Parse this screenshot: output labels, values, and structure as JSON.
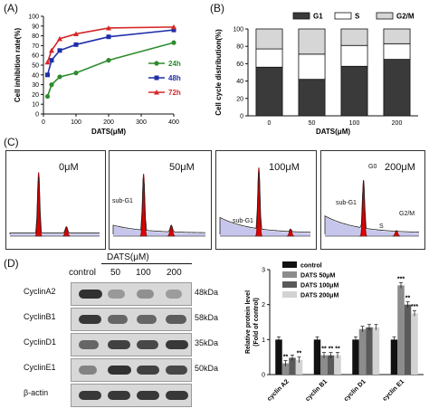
{
  "panels": {
    "a": "(A)",
    "b": "(B)",
    "c": "(C)",
    "d": "(D)"
  },
  "chart_data": [
    {
      "panel": "A",
      "type": "line",
      "xlabel": "DATS(μM)",
      "ylabel": "Cell inhibition rate(%)",
      "xlim": [
        0,
        400
      ],
      "ylim": [
        0,
        100
      ],
      "xticks": [
        "0",
        "100",
        "200",
        "300",
        "400"
      ],
      "yticks": [
        "0",
        "10",
        "20",
        "30",
        "40",
        "50",
        "60",
        "70",
        "80",
        "90",
        "100"
      ],
      "legend_position": "right",
      "series": [
        {
          "name": "24h",
          "color": "#2e8b2e",
          "x": [
            12.5,
            25,
            50,
            100,
            200,
            400
          ],
          "y": [
            18,
            30,
            38,
            42,
            55,
            73
          ]
        },
        {
          "name": "48h",
          "color": "#1f2fa8",
          "x": [
            12.5,
            25,
            50,
            100,
            200,
            400
          ],
          "y": [
            40,
            55,
            65,
            71,
            79,
            86
          ]
        },
        {
          "name": "72h",
          "color": "#d62728",
          "x": [
            12.5,
            25,
            50,
            100,
            200,
            400
          ],
          "y": [
            53,
            65,
            77,
            82,
            88,
            89
          ]
        }
      ]
    },
    {
      "panel": "B",
      "type": "bar",
      "stacked": true,
      "xlabel": "DATS(μM)",
      "ylabel": "Cell cycle distribution(%)",
      "ylim": [
        0,
        100
      ],
      "yticks": [
        "0",
        "20",
        "40",
        "60",
        "80",
        "100"
      ],
      "categories": [
        "0",
        "50",
        "100",
        "200"
      ],
      "legend_position": "top",
      "series": [
        {
          "name": "G1",
          "color": "#3a3a3a",
          "values": [
            56,
            42,
            57,
            65
          ]
        },
        {
          "name": "S",
          "color": "#ffffff",
          "values": [
            21,
            29,
            24,
            18
          ]
        },
        {
          "name": "G2/M",
          "color": "#d6d6d6",
          "values": [
            23,
            29,
            19,
            17
          ]
        }
      ]
    },
    {
      "panel": "D",
      "type": "bar",
      "ylabel": "Relative protein level (Fold of control)",
      "ylim": [
        0,
        3
      ],
      "yticks": [
        "0",
        "1",
        "2",
        "3"
      ],
      "categories": [
        "cyclin A2",
        "cyclin B1",
        "cyclin D1",
        "cyclin E1"
      ],
      "legend_position": "top-left",
      "series": [
        {
          "name": "control",
          "color": "#111111",
          "values": [
            1.0,
            1.0,
            1.0,
            1.0
          ]
        },
        {
          "name": "DATS 50μM",
          "color": "#8c8c8c",
          "values": [
            0.32,
            0.55,
            1.3,
            2.55
          ]
        },
        {
          "name": "DATS 100μM",
          "color": "#5a5a5a",
          "values": [
            0.48,
            0.55,
            1.35,
            2.0
          ]
        },
        {
          "name": "DATS 200μM",
          "color": "#d3d3d3",
          "values": [
            0.42,
            0.55,
            1.35,
            1.75
          ]
        }
      ],
      "significance": [
        {
          "category": "cyclin A2",
          "marks": [
            "**",
            "",
            "**"
          ]
        },
        {
          "category": "cyclin B1",
          "marks": [
            "**",
            "**",
            "**"
          ]
        },
        {
          "category": "cyclin E1",
          "marks": [
            "***",
            "**",
            "***"
          ]
        }
      ]
    }
  ],
  "facs": {
    "panels": [
      {
        "title": "0μM"
      },
      {
        "title": "50μM",
        "subg1": "sub-G1"
      },
      {
        "title": "100μM",
        "subg1": "sub-G1"
      },
      {
        "title": "200μM",
        "g0": "G0",
        "subg1": "sub-G1",
        "g2m": "G2/M",
        "s": "S"
      }
    ]
  },
  "blot": {
    "header": "DATS(μM)",
    "lanes": [
      "control",
      "50",
      "100",
      "200"
    ],
    "rows": [
      {
        "name": "CyclinA2",
        "kda": "48kDa",
        "levels": [
          0.95,
          0.25,
          0.3,
          0.22
        ]
      },
      {
        "name": "CyclinB1",
        "kda": "58kDa",
        "levels": [
          0.9,
          0.6,
          0.6,
          0.65
        ]
      },
      {
        "name": "CyclinD1",
        "kda": "35kDa",
        "levels": [
          0.6,
          0.85,
          0.8,
          0.9
        ]
      },
      {
        "name": "CyclinE1",
        "kda": "50kDa",
        "levels": [
          0.4,
          0.95,
          0.85,
          0.8
        ]
      },
      {
        "name": "β-actin",
        "kda": "",
        "levels": [
          0.9,
          0.9,
          0.9,
          0.9
        ]
      }
    ]
  }
}
